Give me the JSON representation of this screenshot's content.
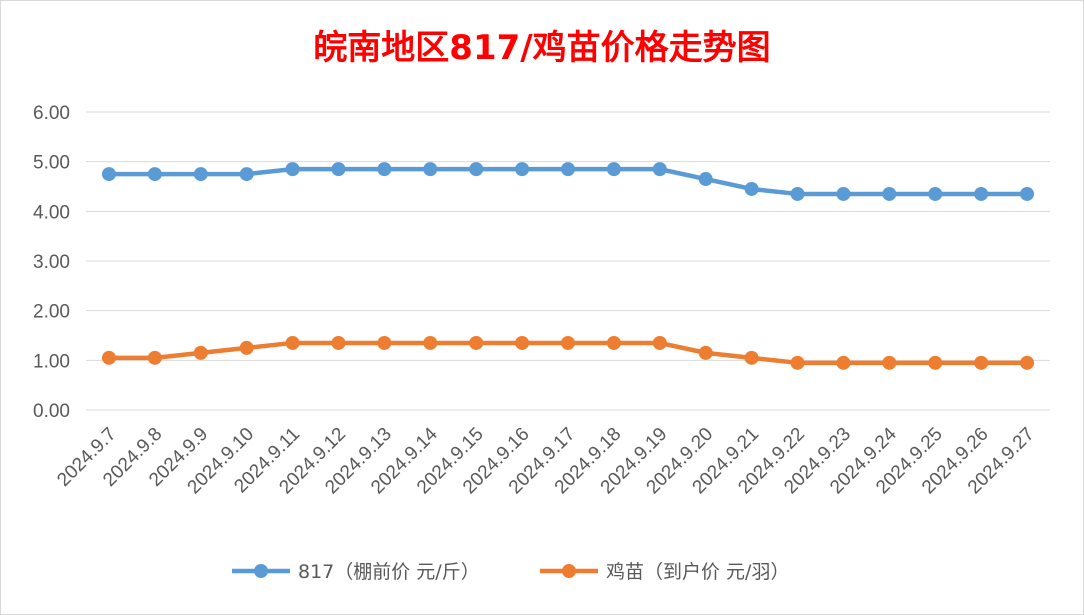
{
  "chart_data": {
    "type": "line",
    "title": "皖南地区817/鸡苗价格走势图",
    "title_color": "#ff0000",
    "categories": [
      "2024.9.7",
      "2024.9.8",
      "2024.9.9",
      "2024.9.10",
      "2024.9.11",
      "2024.9.12",
      "2024.9.13",
      "2024.9.14",
      "2024.9.15",
      "2024.9.16",
      "2024.9.17",
      "2024.9.18",
      "2024.9.19",
      "2024.9.20",
      "2024.9.21",
      "2024.9.22",
      "2024.9.23",
      "2024.9.24",
      "2024.9.25",
      "2024.9.26",
      "2024.9.27"
    ],
    "series": [
      {
        "name": "817（棚前价 元/斤）",
        "color": "#5b9bd5",
        "values": [
          4.75,
          4.75,
          4.75,
          4.75,
          4.85,
          4.85,
          4.85,
          4.85,
          4.85,
          4.85,
          4.85,
          4.85,
          4.85,
          4.65,
          4.45,
          4.35,
          4.35,
          4.35,
          4.35,
          4.35,
          4.35
        ]
      },
      {
        "name": "鸡苗（到户价 元/羽）",
        "color": "#ed7d31",
        "values": [
          1.05,
          1.05,
          1.15,
          1.25,
          1.35,
          1.35,
          1.35,
          1.35,
          1.35,
          1.35,
          1.35,
          1.35,
          1.35,
          1.15,
          1.05,
          0.95,
          0.95,
          0.95,
          0.95,
          0.95,
          0.95
        ]
      }
    ],
    "yticks": [
      "0.00",
      "1.00",
      "2.00",
      "3.00",
      "4.00",
      "5.00",
      "6.00"
    ],
    "ylim": [
      0,
      6
    ],
    "grid": true,
    "legend": "bottom",
    "xlabel": "",
    "ylabel": ""
  }
}
